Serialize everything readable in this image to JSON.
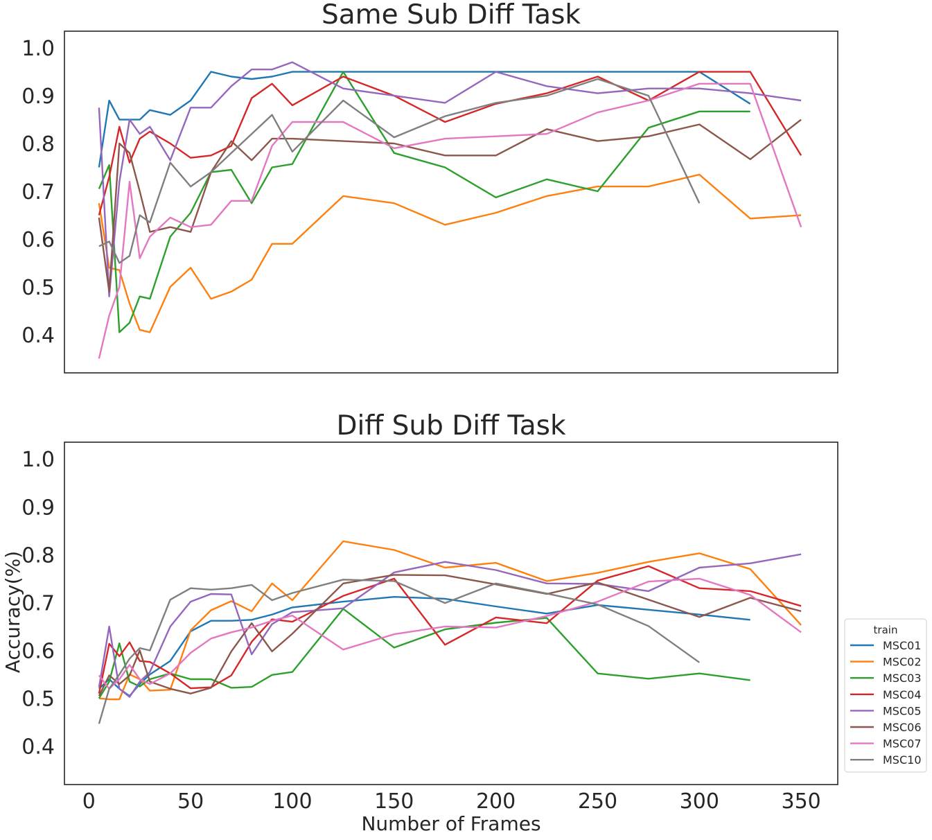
{
  "figure": {
    "xlabel": "Number of Frames",
    "ylabel": "Accuracy(%)"
  },
  "legend": {
    "title": "train",
    "placement": "lower-right-outside"
  },
  "series_styles": [
    {
      "name": "MSC01",
      "color": "#1f77b4"
    },
    {
      "name": "MSC02",
      "color": "#ff7f0e"
    },
    {
      "name": "MSC03",
      "color": "#2ca02c"
    },
    {
      "name": "MSC04",
      "color": "#d62728"
    },
    {
      "name": "MSC05",
      "color": "#9467bd"
    },
    {
      "name": "MSC06",
      "color": "#8c564b"
    },
    {
      "name": "MSC07",
      "color": "#e377c2"
    },
    {
      "name": "MSC10",
      "color": "#7f7f7f"
    }
  ],
  "chart_data": [
    {
      "type": "line",
      "title": "Same Sub Diff Task",
      "xlabel": "",
      "ylabel": "",
      "xlim": [
        -12,
        368
      ],
      "ylim": [
        0.32,
        1.035
      ],
      "xticks": [],
      "yticks": [
        0.4,
        0.5,
        0.6,
        0.7,
        0.8,
        0.9,
        1.0
      ],
      "grid": false,
      "series": [
        {
          "name": "MSC01",
          "x": [
            5,
            10,
            15,
            20,
            25,
            30,
            40,
            50,
            60,
            70,
            80,
            90,
            100,
            125,
            150,
            175,
            200,
            225,
            250,
            275,
            300,
            325
          ],
          "y": [
            0.75,
            0.89,
            0.85,
            0.85,
            0.85,
            0.87,
            0.86,
            0.89,
            0.95,
            0.94,
            0.935,
            0.94,
            0.95,
            0.95,
            0.95,
            0.95,
            0.95,
            0.95,
            0.95,
            0.95,
            0.95,
            0.883
          ]
        },
        {
          "name": "MSC02",
          "x": [
            5,
            10,
            15,
            20,
            25,
            30,
            40,
            50,
            60,
            70,
            80,
            90,
            100,
            125,
            150,
            175,
            200,
            225,
            250,
            275,
            300,
            325,
            350
          ],
          "y": [
            0.675,
            0.54,
            0.535,
            0.465,
            0.41,
            0.405,
            0.5,
            0.54,
            0.475,
            0.49,
            0.515,
            0.59,
            0.59,
            0.69,
            0.675,
            0.63,
            0.655,
            0.69,
            0.71,
            0.71,
            0.735,
            0.643,
            0.65
          ]
        },
        {
          "name": "MSC03",
          "x": [
            5,
            10,
            15,
            20,
            25,
            30,
            40,
            50,
            60,
            70,
            80,
            90,
            100,
            125,
            150,
            175,
            200,
            225,
            250,
            275,
            300,
            325
          ],
          "y": [
            0.705,
            0.755,
            0.405,
            0.425,
            0.48,
            0.475,
            0.605,
            0.655,
            0.74,
            0.745,
            0.675,
            0.75,
            0.757,
            0.95,
            0.78,
            0.75,
            0.687,
            0.725,
            0.7,
            0.833,
            0.867,
            0.867
          ]
        },
        {
          "name": "MSC04",
          "x": [
            5,
            10,
            15,
            20,
            25,
            30,
            40,
            50,
            60,
            70,
            80,
            90,
            100,
            125,
            150,
            175,
            200,
            225,
            250,
            275,
            300,
            325,
            350
          ],
          "y": [
            0.65,
            0.73,
            0.835,
            0.76,
            0.81,
            0.825,
            0.8,
            0.77,
            0.775,
            0.795,
            0.895,
            0.925,
            0.88,
            0.94,
            0.9,
            0.845,
            0.883,
            0.905,
            0.94,
            0.89,
            0.95,
            0.95,
            0.775
          ]
        },
        {
          "name": "MSC05",
          "x": [
            5,
            10,
            15,
            20,
            25,
            30,
            40,
            50,
            60,
            70,
            80,
            90,
            100,
            125,
            150,
            175,
            200,
            225,
            250,
            275,
            300,
            325,
            350
          ],
          "y": [
            0.875,
            0.48,
            0.72,
            0.85,
            0.82,
            0.835,
            0.765,
            0.875,
            0.875,
            0.92,
            0.955,
            0.955,
            0.97,
            0.915,
            0.9,
            0.885,
            0.95,
            0.92,
            0.905,
            0.915,
            0.915,
            0.905,
            0.89
          ]
        },
        {
          "name": "MSC06",
          "x": [
            5,
            10,
            15,
            20,
            25,
            30,
            40,
            50,
            60,
            70,
            80,
            90,
            100,
            125,
            150,
            175,
            200,
            225,
            250,
            275,
            300,
            325,
            350
          ],
          "y": [
            0.645,
            0.49,
            0.8,
            0.78,
            0.7,
            0.615,
            0.625,
            0.615,
            0.74,
            0.805,
            0.765,
            0.81,
            0.81,
            0.805,
            0.8,
            0.775,
            0.775,
            0.83,
            0.805,
            0.815,
            0.84,
            0.767,
            0.85
          ]
        },
        {
          "name": "MSC07",
          "x": [
            5,
            10,
            15,
            20,
            25,
            30,
            40,
            50,
            60,
            70,
            80,
            90,
            100,
            125,
            150,
            175,
            200,
            225,
            250,
            275,
            300,
            325,
            350
          ],
          "y": [
            0.35,
            0.44,
            0.5,
            0.72,
            0.56,
            0.605,
            0.645,
            0.625,
            0.63,
            0.68,
            0.68,
            0.795,
            0.845,
            0.845,
            0.79,
            0.81,
            0.815,
            0.82,
            0.865,
            0.89,
            0.925,
            0.925,
            0.625
          ]
        },
        {
          "name": "MSC10",
          "x": [
            5,
            10,
            15,
            20,
            25,
            30,
            40,
            50,
            60,
            70,
            80,
            90,
            100,
            125,
            150,
            175,
            200,
            225,
            250,
            275,
            300
          ],
          "y": [
            0.585,
            0.595,
            0.55,
            0.565,
            0.65,
            0.635,
            0.76,
            0.71,
            0.74,
            0.78,
            0.82,
            0.86,
            0.783,
            0.89,
            0.813,
            0.857,
            0.885,
            0.9,
            0.935,
            0.9,
            0.675
          ]
        }
      ]
    },
    {
      "type": "line",
      "title": "Diff Sub Diff Task",
      "xlabel": "Number of Frames",
      "ylabel": "Accuracy(%)",
      "xlim": [
        -12,
        368
      ],
      "ylim": [
        0.32,
        1.035
      ],
      "xticks": [
        0,
        50,
        100,
        150,
        200,
        250,
        300,
        350
      ],
      "yticks": [
        0.4,
        0.5,
        0.6,
        0.7,
        0.8,
        0.9,
        1.0
      ],
      "grid": false,
      "series": [
        {
          "name": "MSC01",
          "x": [
            5,
            10,
            15,
            20,
            25,
            30,
            40,
            50,
            60,
            70,
            80,
            90,
            100,
            125,
            150,
            175,
            200,
            225,
            250,
            275,
            300,
            325
          ],
          "y": [
            0.52,
            0.54,
            0.52,
            0.505,
            0.53,
            0.55,
            0.578,
            0.64,
            0.662,
            0.662,
            0.664,
            0.675,
            0.69,
            0.702,
            0.712,
            0.708,
            0.692,
            0.677,
            0.695,
            0.685,
            0.675,
            0.664
          ]
        },
        {
          "name": "MSC02",
          "x": [
            5,
            10,
            15,
            20,
            25,
            30,
            40,
            50,
            60,
            70,
            80,
            90,
            100,
            125,
            150,
            175,
            200,
            225,
            250,
            275,
            300,
            325,
            350
          ],
          "y": [
            0.5,
            0.498,
            0.498,
            0.55,
            0.54,
            0.516,
            0.518,
            0.642,
            0.684,
            0.703,
            0.682,
            0.74,
            0.705,
            0.828,
            0.81,
            0.773,
            0.783,
            0.745,
            0.762,
            0.785,
            0.803,
            0.77,
            0.653
          ]
        },
        {
          "name": "MSC03",
          "x": [
            5,
            10,
            15,
            20,
            25,
            30,
            40,
            50,
            60,
            70,
            80,
            90,
            100,
            125,
            150,
            175,
            200,
            225,
            250,
            275,
            300,
            325
          ],
          "y": [
            0.5,
            0.535,
            0.615,
            0.535,
            0.525,
            0.54,
            0.552,
            0.54,
            0.54,
            0.522,
            0.524,
            0.549,
            0.555,
            0.687,
            0.606,
            0.644,
            0.658,
            0.668,
            0.552,
            0.541,
            0.552,
            0.538
          ]
        },
        {
          "name": "MSC04",
          "x": [
            5,
            10,
            15,
            20,
            25,
            30,
            40,
            50,
            60,
            70,
            80,
            90,
            100,
            125,
            150,
            175,
            200,
            225,
            250,
            275,
            300,
            325,
            350
          ],
          "y": [
            0.51,
            0.614,
            0.588,
            0.617,
            0.578,
            0.576,
            0.552,
            0.521,
            0.523,
            0.548,
            0.618,
            0.665,
            0.66,
            0.714,
            0.75,
            0.612,
            0.669,
            0.657,
            0.746,
            0.776,
            0.73,
            0.724,
            0.693
          ]
        },
        {
          "name": "MSC05",
          "x": [
            5,
            10,
            15,
            20,
            25,
            30,
            40,
            50,
            60,
            70,
            80,
            90,
            100,
            125,
            150,
            175,
            200,
            225,
            250,
            275,
            300,
            325,
            350
          ],
          "y": [
            0.523,
            0.65,
            0.52,
            0.503,
            0.535,
            0.555,
            0.65,
            0.702,
            0.718,
            0.717,
            0.592,
            0.655,
            0.68,
            0.688,
            0.763,
            0.785,
            0.768,
            0.74,
            0.739,
            0.724,
            0.773,
            0.782,
            0.801
          ]
        },
        {
          "name": "MSC06",
          "x": [
            5,
            10,
            15,
            20,
            25,
            30,
            40,
            50,
            60,
            70,
            80,
            90,
            100,
            125,
            150,
            175,
            200,
            225,
            250,
            275,
            300,
            325,
            350
          ],
          "y": [
            0.505,
            0.548,
            0.53,
            0.548,
            0.6,
            0.535,
            0.52,
            0.51,
            0.522,
            0.598,
            0.657,
            0.598,
            0.635,
            0.74,
            0.758,
            0.757,
            0.738,
            0.718,
            0.742,
            0.706,
            0.67,
            0.71,
            0.682
          ]
        },
        {
          "name": "MSC07",
          "x": [
            5,
            10,
            15,
            20,
            25,
            30,
            40,
            50,
            60,
            70,
            80,
            90,
            100,
            125,
            150,
            175,
            200,
            225,
            250,
            275,
            300,
            325,
            350
          ],
          "y": [
            0.548,
            0.52,
            0.54,
            0.57,
            0.54,
            0.53,
            0.552,
            0.595,
            0.625,
            0.638,
            0.648,
            0.662,
            0.673,
            0.602,
            0.634,
            0.65,
            0.648,
            0.672,
            0.702,
            0.744,
            0.75,
            0.716,
            0.638
          ]
        },
        {
          "name": "MSC10",
          "x": [
            5,
            10,
            15,
            20,
            25,
            30,
            40,
            50,
            60,
            70,
            80,
            90,
            100,
            125,
            150,
            175,
            200,
            225,
            250,
            275,
            300
          ],
          "y": [
            0.447,
            0.52,
            0.55,
            0.583,
            0.605,
            0.6,
            0.706,
            0.73,
            0.727,
            0.73,
            0.737,
            0.705,
            0.72,
            0.748,
            0.745,
            0.699,
            0.74,
            0.719,
            0.696,
            0.651,
            0.575
          ]
        }
      ]
    }
  ]
}
